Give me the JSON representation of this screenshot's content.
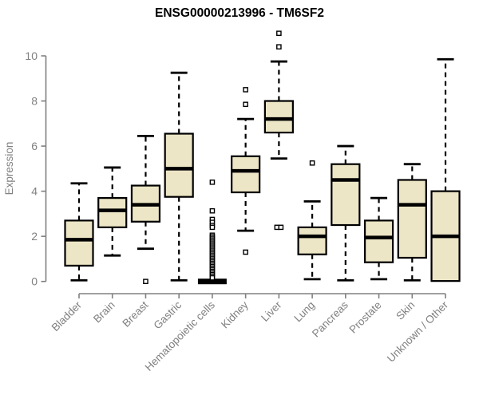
{
  "chart_data": {
    "type": "boxplot",
    "title": "ENSG00000213996 - TM6SF2",
    "ylabel": "Expression",
    "xlabel": "",
    "ylim": [
      0,
      10
    ],
    "yticks": [
      0,
      2,
      4,
      6,
      8,
      10
    ],
    "grid": false,
    "legend": "none",
    "categories": [
      "Bladder",
      "Brain",
      "Breast",
      "Gastric",
      "Hematopoietic cells",
      "Kidney",
      "Liver",
      "Lung",
      "Pancreas",
      "Prostate",
      "Skin",
      "Unknown / Other"
    ],
    "boxes": [
      {
        "category": "Bladder",
        "whisker_low": 0.05,
        "q1": 0.7,
        "median": 1.85,
        "q3": 2.7,
        "whisker_high": 4.35,
        "outliers": []
      },
      {
        "category": "Brain",
        "whisker_low": 1.15,
        "q1": 2.4,
        "median": 3.15,
        "q3": 3.7,
        "whisker_high": 5.05,
        "outliers": []
      },
      {
        "category": "Breast",
        "whisker_low": 1.45,
        "q1": 2.65,
        "median": 3.4,
        "q3": 4.25,
        "whisker_high": 6.45,
        "outliers": [
          0
        ]
      },
      {
        "category": "Gastric",
        "whisker_low": 0.05,
        "q1": 3.75,
        "median": 5.0,
        "q3": 6.55,
        "whisker_high": 9.25,
        "outliers": []
      },
      {
        "category": "Hematopoietic cells",
        "whisker_low": 0,
        "q1": 0,
        "median": 0,
        "q3": 0,
        "whisker_high": 0,
        "outliers": [
          4.4,
          3.13,
          2.75,
          2.62,
          2.48,
          2.4,
          2.05,
          1.98,
          1.91,
          1.84,
          1.77,
          1.7,
          1.63,
          1.56,
          1.49,
          1.42,
          1.35,
          1.28,
          1.21,
          1.14,
          1.07,
          1.0,
          0.93,
          0.86,
          0.79,
          0.72,
          0.65,
          0.58,
          0.51,
          0.44,
          0.37,
          0.3,
          0.23,
          0.16
        ]
      },
      {
        "category": "Kidney",
        "whisker_low": 2.25,
        "q1": 3.95,
        "median": 4.9,
        "q3": 5.55,
        "whisker_high": 7.2,
        "outliers": [
          8.5,
          7.85,
          1.3
        ]
      },
      {
        "category": "Liver",
        "whisker_low": 5.45,
        "q1": 6.6,
        "median": 7.2,
        "q3": 8.0,
        "whisker_high": 9.75,
        "outliers": [
          11.0,
          10.4,
          {
            "v": 2.4,
            "dx": -2.5
          },
          {
            "v": 2.4,
            "dx": 2.5
          }
        ]
      },
      {
        "category": "Lung",
        "whisker_low": 0.1,
        "q1": 1.2,
        "median": 2.0,
        "q3": 2.4,
        "whisker_high": 3.55,
        "outliers": [
          5.25
        ]
      },
      {
        "category": "Pancreas",
        "whisker_low": 0.05,
        "q1": 2.5,
        "median": 4.5,
        "q3": 5.2,
        "whisker_high": 6.0,
        "outliers": []
      },
      {
        "category": "Prostate",
        "whisker_low": 0.1,
        "q1": 0.85,
        "median": 1.95,
        "q3": 2.7,
        "whisker_high": 3.7,
        "outliers": []
      },
      {
        "category": "Skin",
        "whisker_low": 0.05,
        "q1": 1.05,
        "median": 3.4,
        "q3": 4.5,
        "whisker_high": 5.2,
        "outliers": []
      },
      {
        "category": "Unknown / Other",
        "whisker_low": 0.02,
        "q1": 0.02,
        "median": 2.0,
        "q3": 4.0,
        "whisker_high": 9.85,
        "outliers": []
      }
    ],
    "colors": {
      "box_fill": "#ECE5C6",
      "box_border": "#000000",
      "median": "#000000",
      "whisker": "#000000",
      "outlier_fill": "#ffffff",
      "outlier_border": "#000000",
      "axis": "#808080",
      "tick_label": "#808080",
      "title": "#000000",
      "background": "#ffffff"
    }
  }
}
